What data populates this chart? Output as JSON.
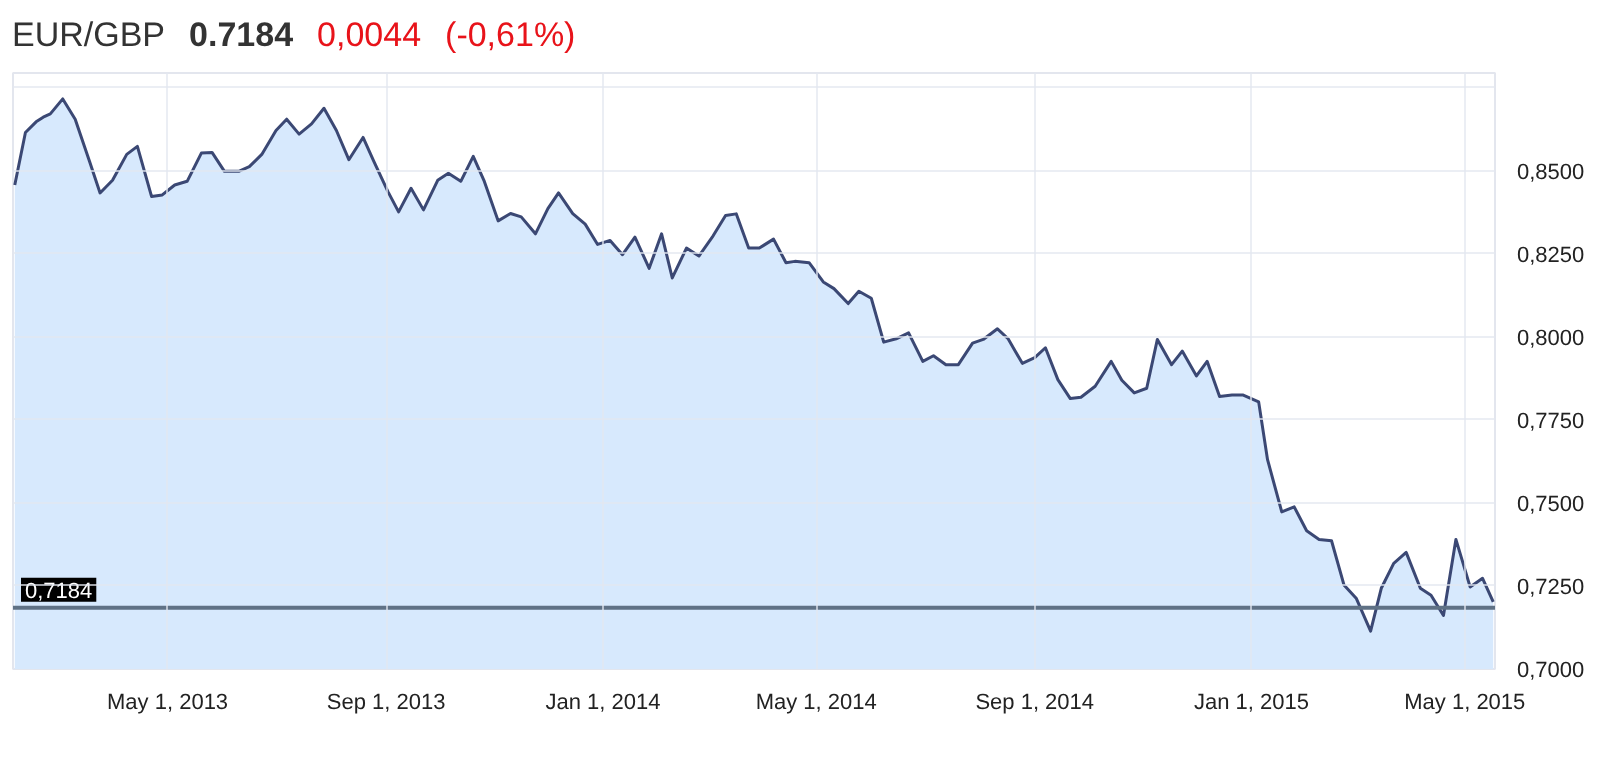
{
  "chart_data": {
    "type": "area",
    "title": "EUR/GBP",
    "annotations": [
      "0.7184",
      "0,0044",
      "(-0,61%)"
    ],
    "x": [
      "2013-02-04",
      "2013-02-10",
      "2013-02-16",
      "2013-02-20",
      "2013-02-24",
      "2013-03-03",
      "2013-03-10",
      "2013-03-18",
      "2013-03-24",
      "2013-03-31",
      "2013-04-08",
      "2013-04-14",
      "2013-04-22",
      "2013-04-28",
      "2013-05-05",
      "2013-05-12",
      "2013-05-20",
      "2013-05-26",
      "2013-06-02",
      "2013-06-10",
      "2013-06-16",
      "2013-06-23",
      "2013-07-01",
      "2013-07-07",
      "2013-07-14",
      "2013-07-21",
      "2013-07-28",
      "2013-08-04",
      "2013-08-11",
      "2013-08-19",
      "2013-08-25",
      "2013-09-02",
      "2013-09-08",
      "2013-09-15",
      "2013-09-22",
      "2013-09-30",
      "2013-10-06",
      "2013-10-13",
      "2013-10-20",
      "2013-10-26",
      "2013-11-03",
      "2013-11-10",
      "2013-11-16",
      "2013-11-24",
      "2013-12-01",
      "2013-12-07",
      "2013-12-15",
      "2013-12-22",
      "2013-12-29",
      "2014-01-05",
      "2014-01-12",
      "2014-01-19",
      "2014-01-27",
      "2014-02-03",
      "2014-02-09",
      "2014-02-17",
      "2014-02-24",
      "2014-03-04",
      "2014-03-11",
      "2014-03-17",
      "2014-03-24",
      "2014-03-30",
      "2014-04-07",
      "2014-04-14",
      "2014-04-19",
      "2014-04-27",
      "2014-05-05",
      "2014-05-11",
      "2014-05-19",
      "2014-05-25",
      "2014-06-01",
      "2014-06-08",
      "2014-06-15",
      "2014-06-22",
      "2014-06-30",
      "2014-07-06",
      "2014-07-13",
      "2014-07-20",
      "2014-07-28",
      "2014-08-03",
      "2014-08-11",
      "2014-08-17",
      "2014-08-25",
      "2014-09-01",
      "2014-09-07",
      "2014-09-14",
      "2014-09-21",
      "2014-09-27",
      "2014-10-05",
      "2014-10-14",
      "2014-10-20",
      "2014-10-27",
      "2014-11-03",
      "2014-11-09",
      "2014-11-17",
      "2014-11-23",
      "2014-12-01",
      "2014-12-07",
      "2014-12-14",
      "2014-12-21",
      "2014-12-27",
      "2015-01-05",
      "2015-01-10",
      "2015-01-18",
      "2015-01-25",
      "2015-02-01",
      "2015-02-08",
      "2015-02-15",
      "2015-02-22",
      "2015-03-01",
      "2015-03-09",
      "2015-03-15",
      "2015-03-22",
      "2015-03-29",
      "2015-04-06",
      "2015-04-12",
      "2015-04-19",
      "2015-04-26",
      "2015-05-04",
      "2015-05-11",
      "2015-05-17"
    ],
    "series": [
      {
        "color": "#3b4874",
        "values": [
          0.8457,
          0.8615,
          0.8647,
          0.8661,
          0.8671,
          0.8716,
          0.8655,
          0.8529,
          0.8433,
          0.8471,
          0.8549,
          0.8573,
          0.8422,
          0.8427,
          0.8457,
          0.8468,
          0.8553,
          0.8555,
          0.8498,
          0.8498,
          0.8512,
          0.8549,
          0.8621,
          0.8655,
          0.861,
          0.8641,
          0.8688,
          0.8621,
          0.8533,
          0.86,
          0.8529,
          0.8437,
          0.8376,
          0.8447,
          0.8382,
          0.8471,
          0.8492,
          0.8468,
          0.8543,
          0.8471,
          0.8349,
          0.8371,
          0.8361,
          0.831,
          0.8386,
          0.8433,
          0.8371,
          0.8339,
          0.8278,
          0.829,
          0.8247,
          0.83,
          0.8206,
          0.831,
          0.8177,
          0.8267,
          0.8243,
          0.8304,
          0.8365,
          0.837,
          0.8267,
          0.8267,
          0.8294,
          0.8223,
          0.8227,
          0.8223,
          0.8165,
          0.8145,
          0.81,
          0.8137,
          0.8116,
          0.7984,
          0.7994,
          0.8012,
          0.7926,
          0.7943,
          0.7916,
          0.7916,
          0.7981,
          0.7992,
          0.8024,
          0.7994,
          0.792,
          0.7937,
          0.7967,
          0.7871,
          0.7814,
          0.7818,
          0.7851,
          0.7926,
          0.7869,
          0.7831,
          0.7845,
          0.7992,
          0.7916,
          0.7957,
          0.7882,
          0.7926,
          0.782,
          0.7825,
          0.7825,
          0.7804,
          0.763,
          0.7473,
          0.7488,
          0.7416,
          0.739,
          0.7386,
          0.7253,
          0.7212,
          0.7114,
          0.7243,
          0.7318,
          0.7351,
          0.7243,
          0.7222,
          0.7161,
          0.739,
          0.7247,
          0.7273,
          0.7202
        ]
      }
    ],
    "xlim": [
      "2013-02-03",
      "2015-05-18"
    ],
    "xticks": [
      {
        "value": "2013-05-01",
        "label": "May 1, 2013"
      },
      {
        "value": "2013-09-01",
        "label": "Sep 1, 2013"
      },
      {
        "value": "2014-01-01",
        "label": "Jan 1, 2014"
      },
      {
        "value": "2014-05-01",
        "label": "May 1, 2014"
      },
      {
        "value": "2014-09-01",
        "label": "Sep 1, 2014"
      },
      {
        "value": "2015-01-01",
        "label": "Jan 1, 2015"
      },
      {
        "value": "2015-05-01",
        "label": "May 1, 2015"
      }
    ],
    "ylim": [
      0.7,
      0.8794
    ],
    "yticks": [
      {
        "value": 0.7,
        "label": "0,7000"
      },
      {
        "value": 0.725,
        "label": "0,7250"
      },
      {
        "value": 0.75,
        "label": "0,7500"
      },
      {
        "value": 0.775,
        "label": "0,7750"
      },
      {
        "value": 0.8,
        "label": "0,8000"
      },
      {
        "value": 0.825,
        "label": "0,8250"
      },
      {
        "value": 0.85,
        "label": "0,8500"
      },
      {
        "value": 0.875,
        "label": null
      }
    ],
    "ref_lines": [
      {
        "axis": "y",
        "value": 0.7184,
        "label": "0,7184",
        "color": "#5f7185"
      }
    ],
    "grid": true
  }
}
